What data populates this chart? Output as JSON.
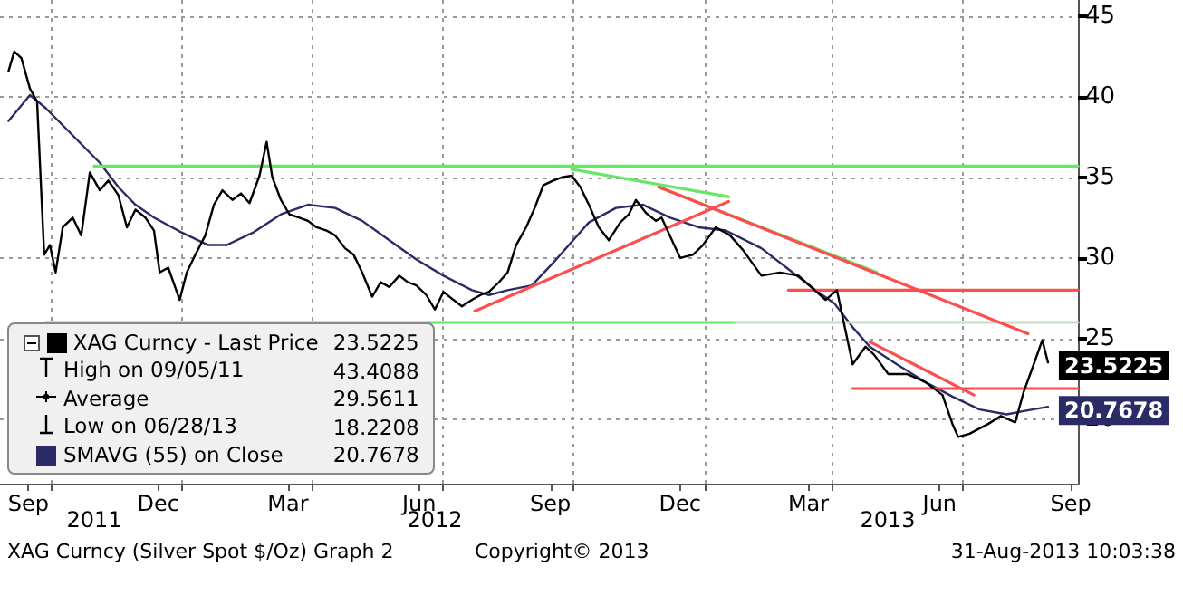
{
  "chart_data": {
    "type": "line",
    "legend": "bottom left",
    "grid": true,
    "marker": "none",
    "line_style": "solid",
    "xlim": [
      "2011-08-26",
      "2013-09-20"
    ],
    "xticks": [
      {
        "value": "2011-09-15",
        "label": "Sep"
      },
      {
        "value": "2011-12-15",
        "label": "Dec"
      },
      {
        "value": "2012-03-15",
        "label": "Mar"
      },
      {
        "value": "2012-06-15",
        "label": "Jun"
      },
      {
        "value": "2012-09-15",
        "label": "Sep"
      },
      {
        "value": "2012-12-15",
        "label": "Dec"
      },
      {
        "value": "2013-03-15",
        "label": "Mar"
      },
      {
        "value": "2013-06-15",
        "label": "Jun"
      },
      {
        "value": "2013-09-15",
        "label": "Sep"
      },
      {
        "value": "2011-10-01",
        "label": null
      },
      {
        "value": "2012-01-01",
        "label": null
      },
      {
        "value": "2012-04-01",
        "label": null
      },
      {
        "value": "2012-07-01",
        "label": null
      },
      {
        "value": "2012-10-01",
        "label": null
      },
      {
        "value": "2013-01-01",
        "label": null
      },
      {
        "value": "2013-04-01",
        "label": null
      },
      {
        "value": "2013-07-01",
        "label": null
      }
    ],
    "ylim": [
      16,
      46
    ],
    "yticks": [
      20,
      25,
      30,
      35,
      40,
      45
    ],
    "series": [
      {
        "name": "XAG Curncy - Last Price",
        "color": "#000000",
        "x": [
          "2011-09-01",
          "2011-09-05",
          "2011-09-10",
          "2011-09-16",
          "2011-09-21",
          "2011-09-26",
          "2011-09-30",
          "2011-10-04",
          "2011-10-09",
          "2011-10-16",
          "2011-10-22",
          "2011-10-28",
          "2011-11-04",
          "2011-11-10",
          "2011-11-17",
          "2011-11-23",
          "2011-11-29",
          "2011-12-06",
          "2011-12-12",
          "2011-12-16",
          "2011-12-22",
          "2011-12-30",
          "2012-01-04",
          "2012-01-10",
          "2012-01-17",
          "2012-01-23",
          "2012-01-29",
          "2012-02-05",
          "2012-02-11",
          "2012-02-17",
          "2012-02-24",
          "2012-02-29",
          "2012-03-04",
          "2012-03-10",
          "2012-03-16",
          "2012-03-23",
          "2012-03-29",
          "2012-04-04",
          "2012-04-11",
          "2012-04-17",
          "2012-04-24",
          "2012-04-30",
          "2012-05-06",
          "2012-05-13",
          "2012-05-19",
          "2012-05-25",
          "2012-06-01",
          "2012-06-07",
          "2012-06-13",
          "2012-06-20",
          "2012-06-26",
          "2012-07-02",
          "2012-07-09",
          "2012-07-15",
          "2012-07-22",
          "2012-07-28",
          "2012-08-03",
          "2012-08-10",
          "2012-08-16",
          "2012-08-22",
          "2012-08-29",
          "2012-09-04",
          "2012-09-10",
          "2012-09-17",
          "2012-09-23",
          "2012-09-30",
          "2012-10-06",
          "2012-10-12",
          "2012-10-19",
          "2012-10-26",
          "2012-11-03",
          "2012-11-09",
          "2012-11-14",
          "2012-11-21",
          "2012-11-28",
          "2012-12-02",
          "2012-12-15",
          "2012-12-24",
          "2012-12-31",
          "2013-01-09",
          "2013-01-19",
          "2013-01-28",
          "2013-02-10",
          "2013-02-23",
          "2013-03-08",
          "2013-03-27",
          "2013-04-04",
          "2013-04-15",
          "2013-04-24",
          "2013-04-30",
          "2013-05-10",
          "2013-05-23",
          "2013-06-05",
          "2013-06-17",
          "2013-06-24",
          "2013-06-28",
          "2013-07-06",
          "2013-07-19",
          "2013-07-28",
          "2013-08-07",
          "2013-08-13",
          "2013-08-20",
          "2013-08-26",
          "2013-08-30"
        ],
        "values": [
          41.6,
          42.8,
          42.4,
          40.5,
          39.7,
          30.2,
          30.8,
          29.1,
          31.9,
          32.5,
          31.4,
          35.3,
          34.2,
          34.8,
          33.9,
          31.9,
          33,
          32.5,
          31.7,
          29.1,
          29.4,
          27.4,
          29.1,
          30.2,
          31.4,
          33.3,
          34.2,
          33.6,
          34,
          33.4,
          35.1,
          37.2,
          35,
          33.6,
          32.7,
          32.5,
          32.3,
          31.9,
          31.7,
          31.4,
          30.6,
          30.2,
          29.1,
          27.6,
          28.5,
          28.2,
          28.9,
          28.5,
          28.3,
          27.7,
          26.8,
          27.9,
          27.4,
          27,
          27.4,
          27.7,
          27.9,
          28.5,
          29.1,
          30.8,
          31.9,
          33.1,
          34.5,
          34.8,
          35,
          35.1,
          34.4,
          33.3,
          31.9,
          31.1,
          32.2,
          32.7,
          33.6,
          32.8,
          32.3,
          32.5,
          30,
          30.2,
          30.8,
          31.9,
          31.4,
          30.5,
          28.9,
          29.1,
          28.9,
          27.4,
          28,
          23.4,
          24.5,
          24,
          22.8,
          22.8,
          22.3,
          21.5,
          19.7,
          18.9,
          19.1,
          19.7,
          20.2,
          19.8,
          21.7,
          23.4,
          24.9,
          23.5225
        ],
        "value_labels": [
          null,
          null,
          null,
          null,
          null,
          null,
          null,
          null,
          null,
          null,
          null,
          null,
          null,
          null,
          null,
          null,
          null,
          null,
          null,
          null,
          null,
          null,
          null,
          null,
          null,
          null,
          null,
          null,
          null,
          null,
          null,
          null,
          null,
          null,
          null,
          null,
          null,
          null,
          null,
          null,
          null,
          null,
          null,
          null,
          null,
          null,
          null,
          null,
          null,
          null,
          null,
          null,
          null,
          null,
          null,
          null,
          null,
          null,
          null,
          null,
          null,
          null,
          null,
          null,
          null,
          null,
          null,
          null,
          null,
          null,
          null,
          null,
          null,
          null,
          null,
          null,
          null,
          null,
          null,
          null,
          null,
          null,
          null,
          null,
          null,
          null,
          null,
          null,
          null,
          null,
          null,
          null,
          null,
          null,
          null,
          null,
          null,
          null,
          null,
          null,
          null,
          null,
          null,
          "23.5225"
        ]
      },
      {
        "name": "SMAVG (55) on Close",
        "color": "#2b2b66",
        "x": [
          "2011-09-01",
          "2011-09-16",
          "2011-09-27",
          "2011-10-16",
          "2011-11-04",
          "2011-11-17",
          "2011-11-29",
          "2011-12-12",
          "2011-12-31",
          "2012-01-19",
          "2012-02-01",
          "2012-02-20",
          "2012-03-10",
          "2012-03-29",
          "2012-04-17",
          "2012-05-06",
          "2012-05-25",
          "2012-06-13",
          "2012-07-02",
          "2012-07-22",
          "2012-08-03",
          "2012-08-16",
          "2012-09-02",
          "2012-09-17",
          "2012-09-30",
          "2012-10-12",
          "2012-10-31",
          "2012-11-19",
          "2012-12-08",
          "2012-12-28",
          "2013-01-16",
          "2013-02-10",
          "2013-03-01",
          "2013-03-20",
          "2013-04-02",
          "2013-04-15",
          "2013-04-27",
          "2013-05-16",
          "2013-06-05",
          "2013-06-24",
          "2013-07-13",
          "2013-08-01",
          "2013-08-13",
          "2013-08-30"
        ],
        "values": [
          38.5,
          40.1,
          39.3,
          37.6,
          35.9,
          34.4,
          33.3,
          32.5,
          31.6,
          30.8,
          30.8,
          31.6,
          32.7,
          33.3,
          33.1,
          32.3,
          31.1,
          29.9,
          28.9,
          28,
          27.7,
          28,
          28.3,
          29.7,
          31,
          32.2,
          33.1,
          33.3,
          32.5,
          31.9,
          31.7,
          30.6,
          29.3,
          28,
          27.2,
          25.7,
          24.5,
          23.4,
          22.3,
          21.4,
          20.6,
          20.3,
          20.5,
          20.7678
        ],
        "value_labels": [
          null,
          null,
          null,
          null,
          null,
          null,
          null,
          null,
          null,
          null,
          null,
          null,
          null,
          null,
          null,
          null,
          null,
          null,
          null,
          null,
          null,
          null,
          null,
          null,
          null,
          null,
          null,
          null,
          null,
          null,
          null,
          null,
          null,
          null,
          null,
          null,
          null,
          null,
          null,
          null,
          null,
          null,
          null,
          "20.7678"
        ]
      },
      {
        "color": "#66e866",
        "x": [
          "2011-10-31",
          "2013-09-20"
        ],
        "values": [
          35.7,
          35.7
        ]
      },
      {
        "color": "#66e866",
        "x": [
          "2011-09-27",
          "2013-01-23"
        ],
        "values": [
          26,
          26
        ]
      },
      {
        "color": "#c8dcc8",
        "x": [
          "2013-01-23",
          "2013-09-20"
        ],
        "values": [
          26,
          26
        ]
      },
      {
        "color": "#66e866",
        "x": [
          "2012-09-30",
          "2013-01-18"
        ],
        "values": [
          35.5,
          33.8
        ]
      },
      {
        "color": "#66e866",
        "x": [
          "2012-11-30",
          "2013-05-02"
        ],
        "values": [
          34.4,
          29.1
        ]
      },
      {
        "color": "#ff4d4d",
        "x": [
          "2012-07-24",
          "2013-01-18"
        ],
        "values": [
          26.7,
          33.5
        ]
      },
      {
        "color": "#ff4d4d",
        "x": [
          "2012-11-30",
          "2013-08-16"
        ],
        "values": [
          34.4,
          25.3
        ]
      },
      {
        "color": "#ff4d4d",
        "x": [
          "2013-03-01",
          "2013-09-20"
        ],
        "values": [
          28,
          28
        ]
      },
      {
        "color": "#ff4d4d",
        "x": [
          "2013-04-15",
          "2013-09-20"
        ],
        "values": [
          21.9,
          21.9
        ]
      },
      {
        "color": "#ff4d4d",
        "x": [
          "2013-04-27",
          "2013-07-09"
        ],
        "values": [
          24.8,
          21.5
        ]
      }
    ],
    "annotations": [
      "High on 09/05/11",
      "43.4088",
      "Average",
      "29.5611",
      "Low on 06/28/13",
      "18.2208",
      "2011",
      "2012",
      "2013",
      "XAG Curncy (Silver Spot  $/Oz) Graph 2",
      "Copyright© 2013",
      "31-Aug-2013 10:03:38"
    ]
  }
}
